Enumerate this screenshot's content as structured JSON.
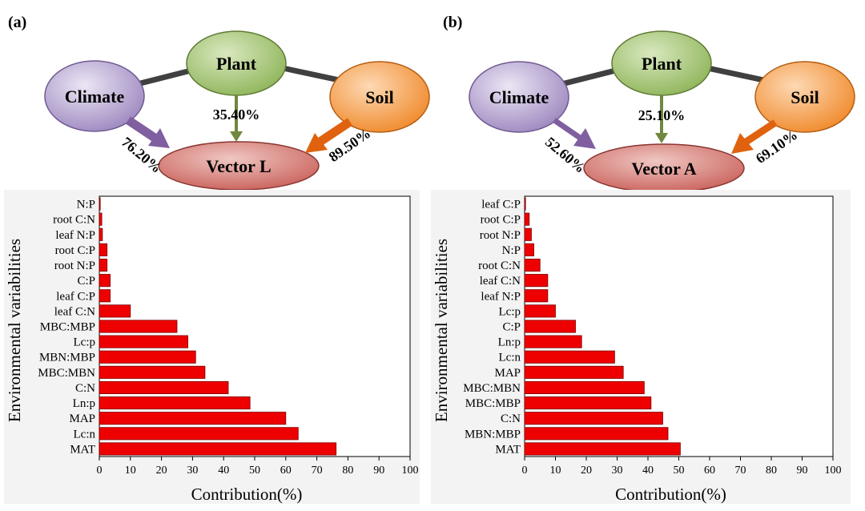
{
  "panels": [
    {
      "label": "(a)",
      "diagram": {
        "nodes": {
          "plant": "Plant",
          "climate": "Climate",
          "soil": "Soil",
          "vector": "Vector L"
        },
        "contributions": {
          "climate": "76.20%",
          "plant": "35.40%",
          "soil": "89.50%"
        }
      }
    },
    {
      "label": "(b)",
      "diagram": {
        "nodes": {
          "plant": "Plant",
          "climate": "Climate",
          "soil": "Soil",
          "vector": "Vector A"
        },
        "contributions": {
          "climate": "52.60%",
          "plant": "25.10%",
          "soil": "69.10%"
        }
      }
    }
  ],
  "colors": {
    "plant": "#8fb55a",
    "climate": "#9d88bf",
    "soil": "#f08a2c",
    "vector": "#c9605a",
    "bar": "#ee0000",
    "connector": "#404040",
    "plant_arrow": "#70883f",
    "climate_arrow": "#7f5fa0",
    "soil_arrow": "#e0620e"
  },
  "chart_data": [
    {
      "type": "bar",
      "orientation": "horizontal",
      "categories": [
        "MAT",
        "Lc:n",
        "MAP",
        "Ln:p",
        "C:N",
        "MBC:MBN",
        "MBN:MBP",
        "Lc:p",
        "MBC:MBP",
        "leaf C:N",
        "leaf C:P",
        "C:P",
        "root N:P",
        "root C:P",
        "leaf N:P",
        "root C:N",
        "N:P"
      ],
      "values": [
        76.2,
        64,
        60,
        48.5,
        41.5,
        34,
        31,
        28.5,
        25,
        10,
        3.5,
        3.5,
        2.5,
        2.5,
        1,
        0.8,
        0.3
      ],
      "xlabel": "Contribution(%)",
      "ylabel": "Environmental variabilities",
      "xlim": [
        0,
        100
      ],
      "xticks": [
        0,
        10,
        20,
        30,
        40,
        50,
        60,
        70,
        80,
        90,
        100
      ]
    },
    {
      "type": "bar",
      "orientation": "horizontal",
      "categories": [
        "MAT",
        "MBN:MBP",
        "C:N",
        "MBC:MBP",
        "MBC:MBN",
        "MAP",
        "Lc:n",
        "Ln:p",
        "C:P",
        "Lc:p",
        "leaf N:P",
        "leaf C:N",
        "root C:N",
        "N:P",
        "root N:P",
        "root C:P",
        "leaf C:P"
      ],
      "values": [
        50.5,
        46.5,
        44.8,
        41,
        38.8,
        32,
        29.2,
        18.5,
        16.5,
        10,
        7.5,
        7.5,
        5,
        3,
        2.2,
        1.5,
        0.3
      ],
      "xlabel": "Contribution(%)",
      "ylabel": "Environmental variabilities",
      "xlim": [
        0,
        100
      ],
      "xticks": [
        0,
        10,
        20,
        30,
        40,
        50,
        60,
        70,
        80,
        90,
        100
      ]
    }
  ]
}
